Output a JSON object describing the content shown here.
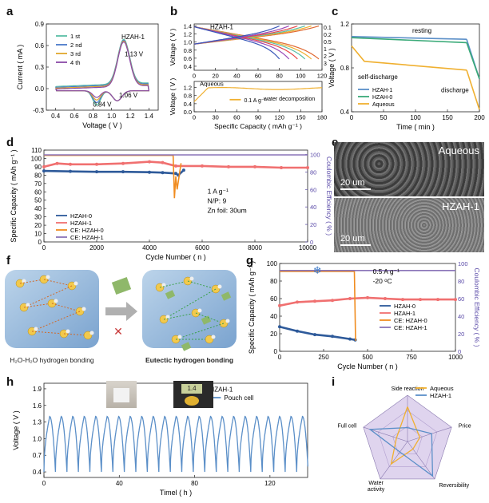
{
  "panel_labels": [
    "a",
    "b",
    "c",
    "d",
    "e",
    "f",
    "g",
    "h",
    "i"
  ],
  "chart_data": [
    {
      "id": "a",
      "type": "line",
      "xlabel": "Voltage ( V )",
      "ylabel": "Current ( mA )",
      "xlim": [
        0.3,
        1.5
      ],
      "ylim": [
        -0.3,
        0.9
      ],
      "xticks": [
        "0.4",
        "0.6",
        "0.8",
        "1.0",
        "1.2",
        "1.4"
      ],
      "yticks": [
        "-0.3",
        "0.0",
        "0.3",
        "0.6",
        "0.9"
      ],
      "legend_title": "HZAH-1",
      "annotations": [
        "1.13 V",
        "1.06 V",
        "0.84 V"
      ],
      "series": [
        {
          "name": "1 st",
          "color": "#5bbfa6"
        },
        {
          "name": "2 nd",
          "color": "#4a78c8"
        },
        {
          "name": "3 rd",
          "color": "#e0a82e"
        },
        {
          "name": "4 th",
          "color": "#8a4aa8"
        }
      ]
    },
    {
      "id": "b_top",
      "type": "line",
      "xlabel": "",
      "ylabel": "Voltage ( V )",
      "xlim": [
        0,
        120
      ],
      "ylim": [
        0.3,
        1.45
      ],
      "xticks": [
        "0",
        "20",
        "40",
        "60",
        "80",
        "100",
        "120"
      ],
      "yticks": [
        "0.4",
        "0.6",
        "0.8",
        "1.0",
        "1.2",
        "1.4"
      ],
      "title": "HZAH-1",
      "series": [
        {
          "name": "0.1",
          "capacity": 117,
          "color": "#e06830"
        },
        {
          "name": "0.2",
          "capacity": 110,
          "color": "#f0b030"
        },
        {
          "name": "0.5",
          "capacity": 104,
          "color": "#5bbfa6"
        },
        {
          "name": "1",
          "capacity": 97,
          "color": "#e84848"
        },
        {
          "name": "2",
          "capacity": 89,
          "color": "#9a4ab8"
        },
        {
          "name": "3",
          "capacity": 80,
          "color": "#3a58b8"
        }
      ]
    },
    {
      "id": "b_bottom",
      "type": "line",
      "xlabel": "Specific Capacity ( mAh g⁻¹ )",
      "ylabel": "Voltage ( V )",
      "xlim": [
        0,
        180
      ],
      "ylim": [
        0,
        1.5
      ],
      "xticks": [
        "0",
        "30",
        "60",
        "90",
        "120",
        "150",
        "180"
      ],
      "yticks": [
        "0.0",
        "0.4",
        "0.8",
        "1.2"
      ],
      "title": "Aqueous",
      "annotations": [
        "water decomposition"
      ],
      "series": [
        {
          "name": "0.1 A g⁻¹",
          "color": "#f0b030"
        }
      ]
    },
    {
      "id": "c",
      "type": "line",
      "xlabel": "Time ( min )",
      "ylabel": "Voltage ( V )",
      "xlim": [
        0,
        200
      ],
      "ylim": [
        0.4,
        1.2
      ],
      "xticks": [
        "0",
        "50",
        "100",
        "150",
        "200"
      ],
      "yticks": [
        "0.4",
        "0.8",
        "1.2"
      ],
      "annotations": [
        "resting",
        "self-discharge",
        "discharge"
      ],
      "series": [
        {
          "name": "HZAH-1",
          "color": "#5b8fc8",
          "rest": [
            [
              0,
              1.085
            ],
            [
              180,
              1.06
            ]
          ],
          "discharge": [
            [
              180,
              1.06
            ],
            [
              200,
              0.7
            ]
          ]
        },
        {
          "name": "HZAH-0",
          "color": "#3aaa78",
          "rest": [
            [
              0,
              1.075
            ],
            [
              180,
              1.03
            ]
          ],
          "discharge": [
            [
              180,
              1.03
            ],
            [
              200,
              0.7
            ]
          ]
        },
        {
          "name": "Aqueous",
          "color": "#f0b030",
          "rest": [
            [
              0,
              1.0
            ],
            [
              20,
              0.86
            ],
            [
              180,
              0.78
            ]
          ],
          "discharge": [
            [
              180,
              0.78
            ],
            [
              200,
              0.42
            ]
          ]
        }
      ]
    },
    {
      "id": "d",
      "type": "scatter",
      "xlabel": "Cycle Number ( n )",
      "ylabel": "Specific Capacity ( mAh g⁻¹ )",
      "y2label": "Coulombic Efficiency ( % )",
      "xlim": [
        0,
        10000
      ],
      "ylim": [
        0,
        110
      ],
      "y2lim": [
        0,
        105
      ],
      "xticks": [
        "0",
        "2000",
        "4000",
        "6000",
        "8000",
        "10000"
      ],
      "yticks": [
        "0",
        "10",
        "20",
        "30",
        "40",
        "50",
        "60",
        "70",
        "80",
        "90",
        "100",
        "110"
      ],
      "y2ticks": [
        "0",
        "20",
        "40",
        "60",
        "80",
        "100"
      ],
      "notes": [
        "1 A g⁻¹",
        "N/P: 9",
        "Zn foil: 30um"
      ],
      "series": [
        {
          "name": "HZAH-0",
          "color": "#2e5a9a",
          "x": [
            0,
            1000,
            2000,
            3000,
            4000,
            4500,
            5000,
            5100,
            5300
          ],
          "y": [
            85,
            84.5,
            84,
            84,
            83.5,
            83,
            82,
            80,
            86
          ]
        },
        {
          "name": "HZAH-1",
          "color": "#f07070",
          "x": [
            0,
            500,
            1000,
            2000,
            3000,
            4000,
            4500,
            5000,
            6000,
            7000,
            8000,
            9000,
            10000
          ],
          "y": [
            90,
            94,
            93,
            93,
            94,
            96,
            95,
            91,
            91,
            90,
            90,
            89,
            89
          ]
        },
        {
          "name": "CE: HZAH-0",
          "color": "#f08c20",
          "x": [
            0,
            1000,
            2000,
            3000,
            4000,
            4900,
            4950,
            5000,
            5050,
            5200
          ],
          "y": [
            99,
            99,
            99,
            99,
            99,
            99,
            50,
            75,
            60,
            90
          ]
        },
        {
          "name": "CE: HZAH-1",
          "color": "#8a74b8",
          "x": [
            0,
            2000,
            4000,
            6000,
            8000,
            10000
          ],
          "y": [
            99.5,
            99.5,
            99.5,
            99.5,
            99.5,
            99.5
          ]
        }
      ]
    },
    {
      "id": "g",
      "type": "scatter",
      "xlabel": "Cycle Number ( n )",
      "ylabel": "Specific Capacity ( mAh g⁻¹ )",
      "y2label": "Coulombic Efficiency ( % )",
      "xlim": [
        0,
        1000
      ],
      "ylim": [
        0,
        100
      ],
      "y2lim": [
        0,
        100
      ],
      "xticks": [
        "0",
        "250",
        "500",
        "750",
        "1000"
      ],
      "yticks": [
        "0",
        "20",
        "40",
        "60",
        "80",
        "100"
      ],
      "y2ticks": [
        "0",
        "20",
        "40",
        "60",
        "80",
        "100"
      ],
      "notes": [
        "0.5 A g⁻¹",
        "-20 ᵒC"
      ],
      "series": [
        {
          "name": "HZAH-0",
          "color": "#2e5a9a",
          "x": [
            0,
            100,
            200,
            300,
            400,
            430
          ],
          "y": [
            28,
            23,
            19,
            17,
            14,
            13
          ]
        },
        {
          "name": "HZAH-1",
          "color": "#f07070",
          "x": [
            0,
            100,
            200,
            300,
            400,
            500,
            600,
            700,
            800,
            900,
            1000
          ],
          "y": [
            52,
            56,
            57,
            58,
            60,
            61,
            60,
            59,
            59,
            59,
            59
          ]
        },
        {
          "name": "CE: HZAH-0",
          "color": "#f08c20",
          "x": [
            0,
            200,
            425,
            432
          ],
          "y": [
            91,
            91,
            91,
            12
          ]
        },
        {
          "name": "CE: HZAH-1",
          "color": "#8a74b8",
          "x": [
            0,
            250,
            500,
            750,
            1000
          ],
          "y": [
            92,
            92,
            92,
            92,
            92
          ]
        }
      ]
    },
    {
      "id": "h",
      "type": "line",
      "xlabel": "Timel ( h )",
      "ylabel": "Voltage ( V )",
      "xlim": [
        0,
        140
      ],
      "ylim": [
        0.3,
        2.0
      ],
      "xticks": [
        "0",
        "40",
        "80",
        "120"
      ],
      "yticks": [
        "0.4",
        "0.7",
        "1.0",
        "1.3",
        "1.6",
        "1.9"
      ],
      "legend_title": "HZAH-1",
      "series": [
        {
          "name": "Pouch cell",
          "color": "#5b8fc8",
          "period": 6.1,
          "vmin": 0.4,
          "vmax": 1.4,
          "cycles": 23
        }
      ]
    },
    {
      "id": "i",
      "type": "radar",
      "axes": [
        "Side reaction",
        "Price",
        "Reversibility",
        "Water activity",
        "Full cell"
      ],
      "series": [
        {
          "name": "Aqueous",
          "color": "#f0b030",
          "values": [
            0.75,
            0.28,
            0.2,
            0.6,
            0.25
          ]
        },
        {
          "name": "HZAH-1",
          "color": "#5b8fc8",
          "values": [
            0.3,
            0.55,
            0.92,
            0.28,
            0.85
          ]
        }
      ]
    }
  ],
  "panel_e": {
    "top_label": "Aqueous",
    "bottom_label": "HZAH-1",
    "scale_top": "20 um",
    "scale_bottom": "20 um"
  },
  "panel_f": {
    "left_caption": "H₂O-H₂O hydrogen bonding",
    "right_caption": "Eutectic hydrogen bonding"
  },
  "panel_h_photo": {
    "multimeter_text": "1.4"
  }
}
